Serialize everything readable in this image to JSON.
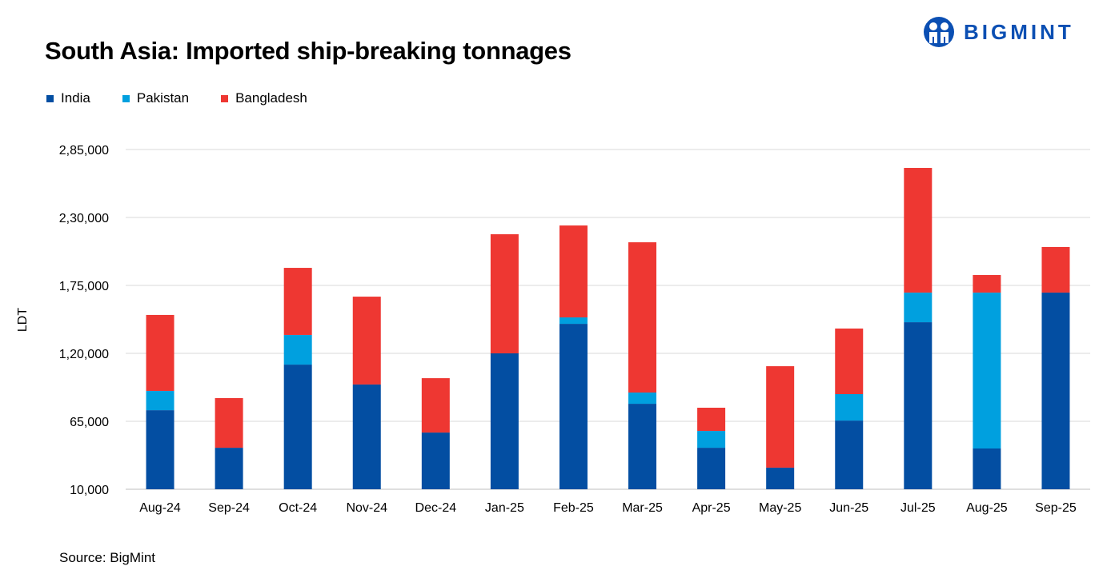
{
  "logo": {
    "text": "BIGMINT"
  },
  "source": "Source: BigMint",
  "colors": {
    "India": "#034ea2",
    "Pakistan": "#00a0df",
    "Bangladesh": "#ee3732",
    "grid": "#d9d9d9"
  },
  "chart_data": {
    "type": "bar",
    "stacked": true,
    "title": "South Asia: Imported ship-breaking tonnages",
    "xlabel": "",
    "ylabel": "LDT",
    "ylim": [
      10000,
      285000
    ],
    "yticks": [
      "10,000",
      "65,000",
      "1,20,000",
      "1,75,000",
      "2,30,000",
      "2,85,000"
    ],
    "ytick_values": [
      10000,
      65000,
      120000,
      175000,
      230000,
      285000
    ],
    "grid": true,
    "legend_position": "top-left",
    "categories": [
      "Aug-24",
      "Sep-24",
      "Oct-24",
      "Nov-24",
      "Dec-24",
      "Jan-25",
      "Feb-25",
      "Mar-25",
      "Apr-25",
      "May-25",
      "Jun-25",
      "Jul-25",
      "Aug-25",
      "Sep-25"
    ],
    "series": [
      {
        "name": "India",
        "values": [
          74000,
          43600,
          110900,
          94800,
          55900,
          120000,
          143900,
          79200,
          43600,
          27500,
          65600,
          145200,
          43000,
          169200
        ]
      },
      {
        "name": "Pakistan",
        "values": [
          15600,
          0,
          24000,
          0,
          0,
          0,
          5200,
          9100,
          13600,
          0,
          21400,
          24000,
          126200,
          0
        ]
      },
      {
        "name": "Bangladesh",
        "values": [
          61500,
          40200,
          54300,
          71100,
          44000,
          96400,
          74400,
          121600,
          18800,
          82100,
          53100,
          100900,
          14200,
          36900
        ]
      }
    ]
  }
}
